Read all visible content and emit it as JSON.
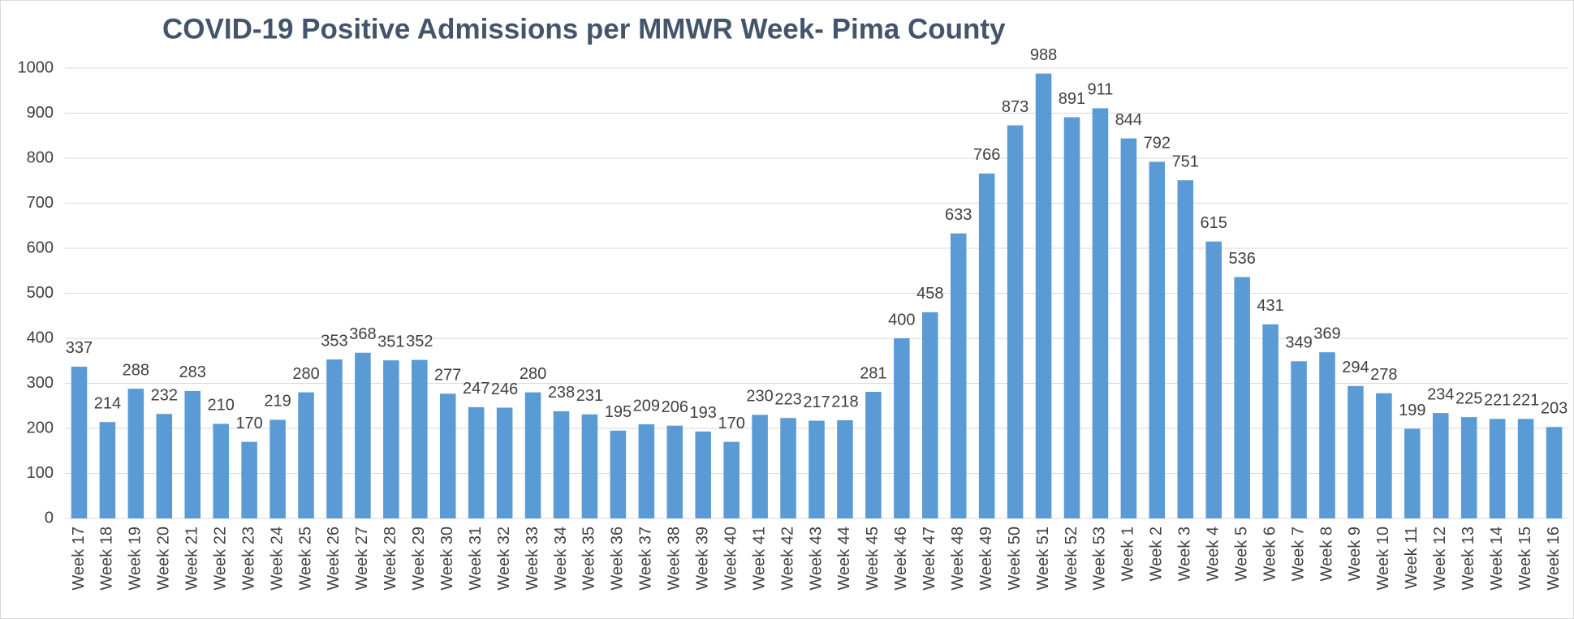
{
  "chart_data": {
    "type": "bar",
    "title": "COVID-19 Positive Admissions per MMWR Week- Pima County",
    "categories": [
      "Week 17",
      "Week 18",
      "Week 19",
      "Week 20",
      "Week 21",
      "Week 22",
      "Week 23",
      "Week 24",
      "Week 25",
      "Week 26",
      "Week 27",
      "Week 28",
      "Week 29",
      "Week 30",
      "Week 31",
      "Week 32",
      "Week 33",
      "Week 34",
      "Week 35",
      "Week 36",
      "Week 37",
      "Week 38",
      "Week 39",
      "Week 40",
      "Week 41",
      "Week 42",
      "Week 43",
      "Week 44",
      "Week 45",
      "Week 46",
      "Week 47",
      "Week 48",
      "Week 49",
      "Week 50",
      "Week 51",
      "Week 52",
      "Week 53",
      "Week 1",
      "Week 2",
      "Week 3",
      "Week 4",
      "Week 5",
      "Week 6",
      "Week 7",
      "Week 8",
      "Week 9",
      "Week 10",
      "Week 11",
      "Week 12",
      "Week 13",
      "Week 14",
      "Week 15",
      "Week 16"
    ],
    "values": [
      337,
      214,
      288,
      232,
      283,
      210,
      170,
      219,
      280,
      353,
      368,
      351,
      352,
      277,
      247,
      246,
      280,
      238,
      231,
      195,
      209,
      206,
      193,
      170,
      230,
      223,
      217,
      218,
      281,
      400,
      458,
      633,
      766,
      873,
      988,
      891,
      911,
      844,
      792,
      751,
      615,
      536,
      431,
      349,
      369,
      294,
      278,
      199,
      234,
      225,
      221,
      221,
      203
    ],
    "color": "#5b9bd5",
    "ylim": [
      0,
      1000
    ],
    "yticks": [
      0,
      100,
      200,
      300,
      400,
      500,
      600,
      700,
      800,
      900,
      1000
    ],
    "grid": true
  }
}
